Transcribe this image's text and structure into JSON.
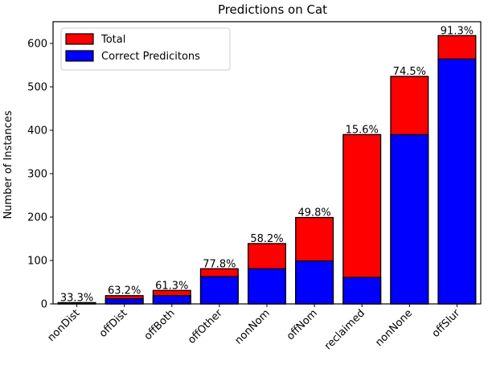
{
  "chart_data": {
    "type": "bar",
    "title": "Predictions on Cat",
    "xlabel": "",
    "ylabel": "Number of Instances",
    "categories": [
      "nonDist",
      "offDist",
      "offBoth",
      "offOther",
      "nonNom",
      "offNom",
      "reclaimed",
      "nonNone",
      "offSlur"
    ],
    "series": [
      {
        "name": "Total",
        "color": "#ff0000",
        "values": [
          3,
          19,
          31,
          81,
          139,
          199,
          390,
          524,
          618
        ]
      },
      {
        "name": "Correct Predicitons",
        "color": "#0000ff",
        "values": [
          1,
          12,
          19,
          63,
          81,
          99,
          61,
          390,
          564
        ]
      }
    ],
    "bar_labels": [
      "33.3%",
      "63.2%",
      "61.3%",
      "77.8%",
      "58.2%",
      "49.8%",
      "15.6%",
      "74.5%",
      "91.3%"
    ],
    "ylim": [
      0,
      650
    ],
    "yticks": [
      0,
      100,
      200,
      300,
      400,
      500,
      600
    ],
    "grid": false,
    "legend_position": "upper-left",
    "overlay": true
  }
}
